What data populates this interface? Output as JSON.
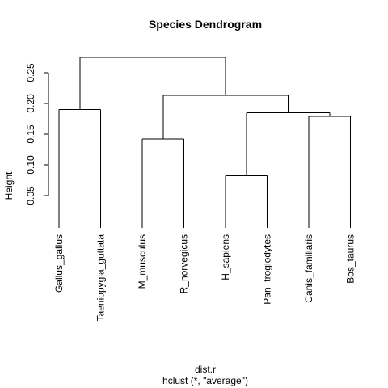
{
  "chart_data": {
    "type": "dendrogram",
    "title": "Species Dendrogram",
    "ylabel": "Height",
    "xlabel": "dist.r",
    "sub": "hclust (*, \"average\")",
    "ylim": [
      0,
      0.28
    ],
    "y_ticks": [
      0.05,
      0.1,
      0.15,
      0.2,
      0.25
    ],
    "y_tick_labels": [
      "0.05",
      "0.10",
      "0.15",
      "0.20",
      "0.25"
    ],
    "leaves": [
      "Gallus_gallus",
      "Taeniopygia_guttata",
      "M_musculus",
      "R_norvegicus",
      "H_sapiens",
      "Pan_troglodytes",
      "Canis_familiaris",
      "Bos_taurus"
    ],
    "merges": [
      {
        "id": "n1",
        "left": "H_sapiens",
        "right": "Pan_troglodytes",
        "height": 0.082
      },
      {
        "id": "n2",
        "left": "M_musculus",
        "right": "R_norvegicus",
        "height": 0.142
      },
      {
        "id": "n3",
        "left": "Canis_familiaris",
        "right": "Bos_taurus",
        "height": 0.179
      },
      {
        "id": "n4",
        "left": "n1",
        "right": "n3",
        "height": 0.185
      },
      {
        "id": "n5",
        "left": "Gallus_gallus",
        "right": "Taeniopygia_guttata",
        "height": 0.19
      },
      {
        "id": "n6",
        "left": "n2",
        "right": "n4",
        "height": 0.213
      },
      {
        "id": "n7",
        "left": "n5",
        "right": "n6",
        "height": 0.275
      }
    ]
  }
}
